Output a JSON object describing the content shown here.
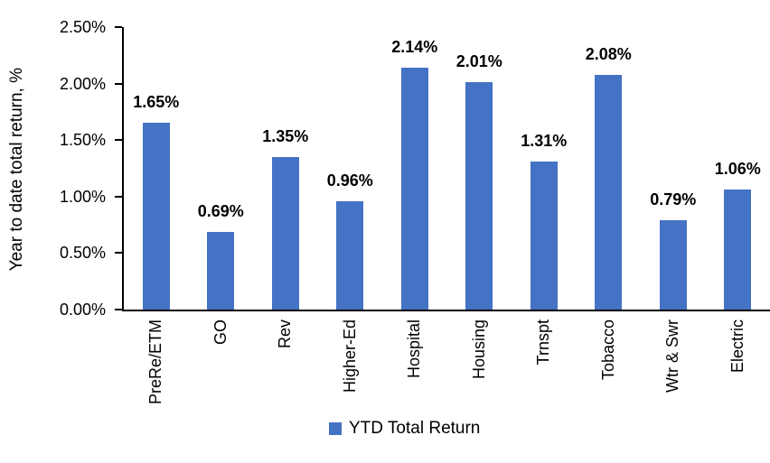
{
  "chart_data": {
    "type": "bar",
    "title": "",
    "xlabel": "",
    "ylabel": "Year to date total return, %",
    "categories": [
      "PreRe/ETM",
      "GO",
      "Rev",
      "Higher-Ed",
      "Hospital",
      "Housing",
      "Trnspt",
      "Tobacco",
      "Wtr & Swr",
      "Electric"
    ],
    "series": [
      {
        "name": "YTD Total Return",
        "values": [
          1.65,
          0.69,
          1.35,
          0.96,
          2.14,
          2.01,
          1.31,
          2.08,
          0.79,
          1.06
        ],
        "color": "#4472C4"
      }
    ],
    "value_labels": [
      "1.65%",
      "0.69%",
      "1.35%",
      "0.96%",
      "2.14%",
      "2.01%",
      "1.31%",
      "2.08%",
      "0.79%",
      "1.06%"
    ],
    "ylim": [
      0,
      2.5
    ],
    "ytick_step": 0.5,
    "ytick_labels": [
      "0.00%",
      "0.50%",
      "1.00%",
      "1.50%",
      "2.00%",
      "2.50%"
    ],
    "grid": false,
    "legend_position": "bottom",
    "axis_color": "#000000",
    "text_color": "#000000",
    "background_color": "#FFFFFF"
  }
}
